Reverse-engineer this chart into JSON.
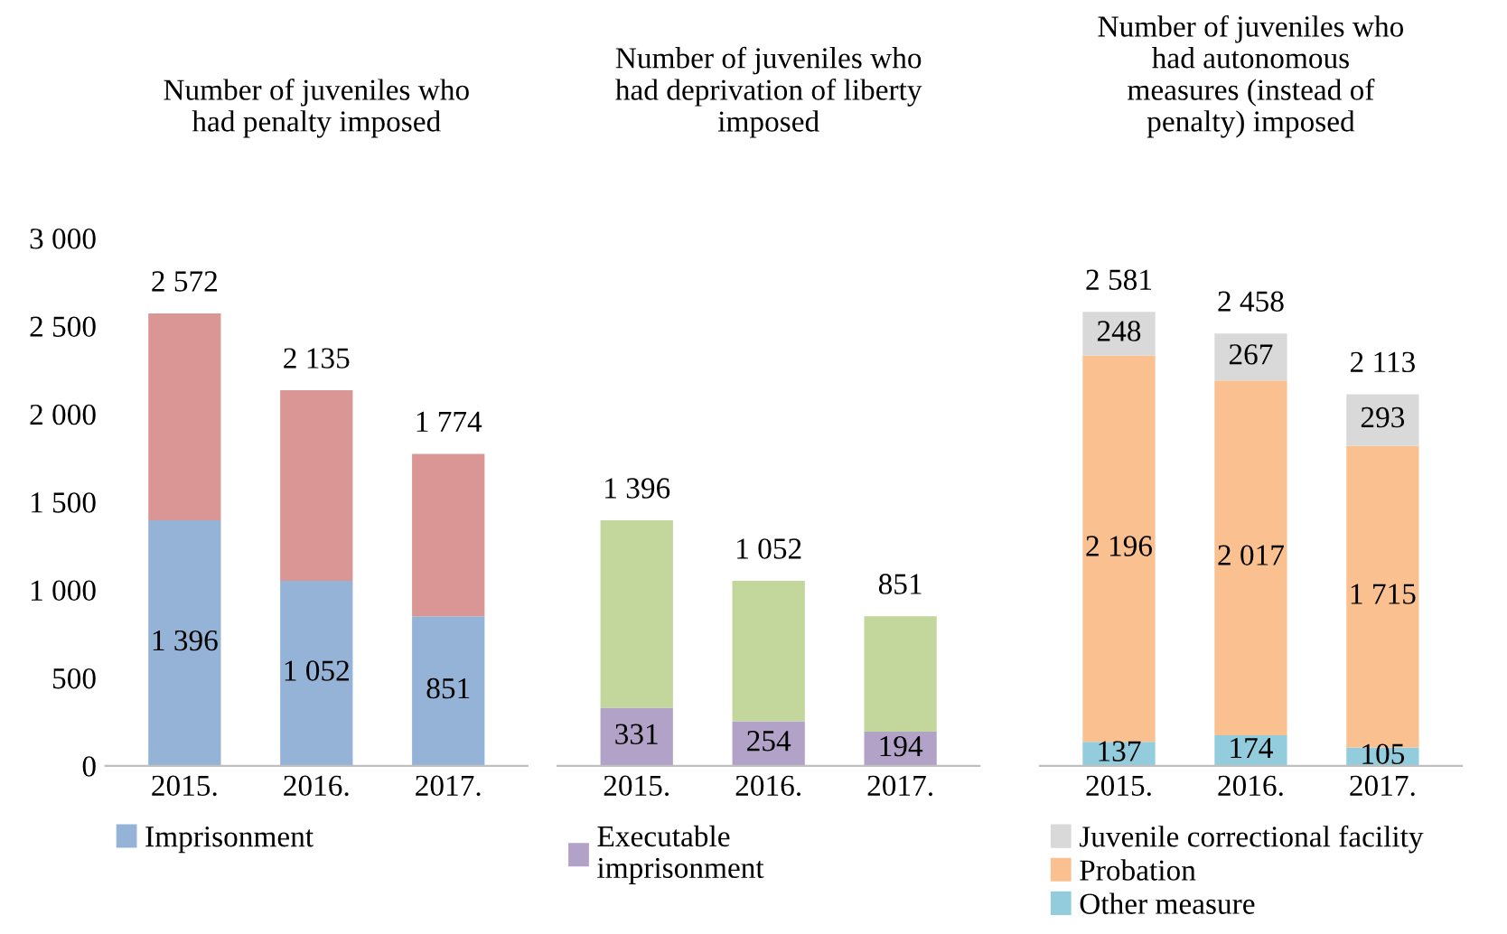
{
  "chart_data": [
    {
      "type": "bar",
      "stacked": true,
      "title": "Number of juveniles who\nhad penalty imposed",
      "categories": [
        "2015.",
        "2016.",
        "2017."
      ],
      "ylim": [
        0,
        3000
      ],
      "yticks": [
        {
          "value": 0,
          "label": "0"
        },
        {
          "value": 500,
          "label": "500"
        },
        {
          "value": 1000,
          "label": "1 000"
        },
        {
          "value": 1500,
          "label": "1 500"
        },
        {
          "value": 2000,
          "label": "2 000"
        },
        {
          "value": 2500,
          "label": "2 500"
        },
        {
          "value": 3000,
          "label": "3 000"
        }
      ],
      "legend": "bottom",
      "grid": false,
      "series": [
        {
          "name": "Imprisonment",
          "color": "#95b3d7",
          "values": [
            1396,
            1052,
            851
          ],
          "value_labels": [
            "1 396",
            "1 052",
            "851"
          ]
        },
        {
          "color": "#d99694",
          "values": [
            1176,
            1083,
            923
          ]
        }
      ],
      "totals": [
        "2 572",
        "2 135",
        "1 774"
      ]
    },
    {
      "type": "bar",
      "stacked": true,
      "title": "Number of juveniles who\nhad deprivation of liberty\nimposed",
      "categories": [
        "2015.",
        "2016.",
        "2017."
      ],
      "ylim": [
        0,
        3000
      ],
      "tick_labels": "x",
      "legend": "bottom",
      "grid": false,
      "series": [
        {
          "name": "Executable\nimprisonment",
          "color": "#b3a2c7",
          "values": [
            331,
            254,
            194
          ],
          "value_labels": [
            "331",
            "254",
            "194"
          ]
        },
        {
          "color": "#c3d69b",
          "values": [
            1065,
            798,
            657
          ]
        }
      ],
      "totals": [
        "1 396",
        "1 052",
        "851"
      ]
    },
    {
      "type": "bar",
      "stacked": true,
      "title": "Number of juveniles who\nhad autonomous\nmeasures (instead of\npenalty) imposed",
      "categories": [
        "2015.",
        "2016.",
        "2017."
      ],
      "ylim": [
        0,
        3000
      ],
      "tick_labels": "x",
      "legend": "bottom",
      "grid": false,
      "series": [
        {
          "name": "Other measure",
          "color": "#93cddd",
          "values": [
            137,
            174,
            105
          ],
          "value_labels": [
            "137",
            "174",
            "105"
          ]
        },
        {
          "name": "Probation",
          "color": "#fac090",
          "values": [
            2196,
            2017,
            1715
          ],
          "value_labels": [
            "2 196",
            "2 017",
            "1 715"
          ]
        },
        {
          "name": "Juvenile correctional facility",
          "color": "#d9d9d9",
          "values": [
            248,
            267,
            293
          ],
          "value_labels": [
            "248",
            "267",
            "293"
          ]
        }
      ],
      "totals": [
        "2 581",
        "2 458",
        "2 113"
      ]
    }
  ]
}
